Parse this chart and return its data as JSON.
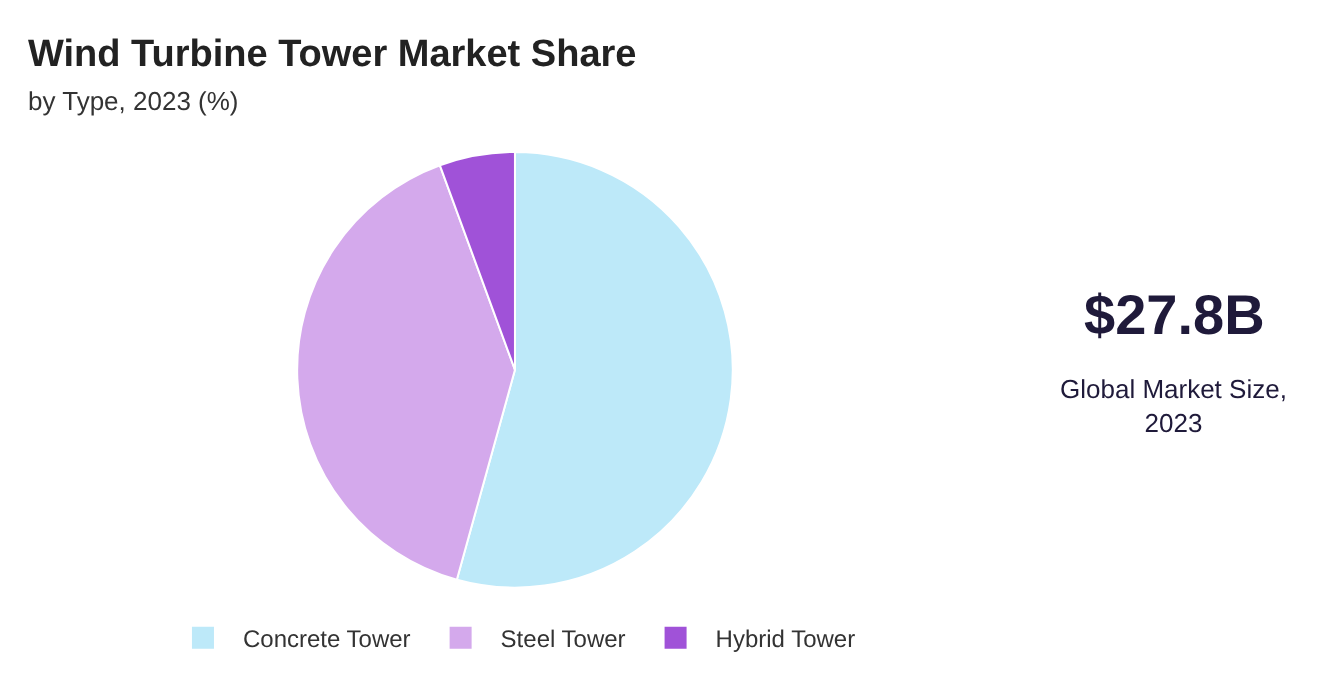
{
  "chart_data": {
    "type": "pie",
    "title": "Wind Turbine Tower Market Share",
    "subtitle": "by Type, 2023 (%)",
    "categories": [
      "Concrete Tower",
      "Steel Tower",
      "Hybrid Tower"
    ],
    "values": [
      54.3,
      40.1,
      5.6
    ],
    "colors": [
      "#bde9f9",
      "#d4a9ec",
      "#a052d8"
    ],
    "legend": "bottom",
    "annotations": [
      "$27.8B",
      "Global Market Size, 2023"
    ]
  }
}
